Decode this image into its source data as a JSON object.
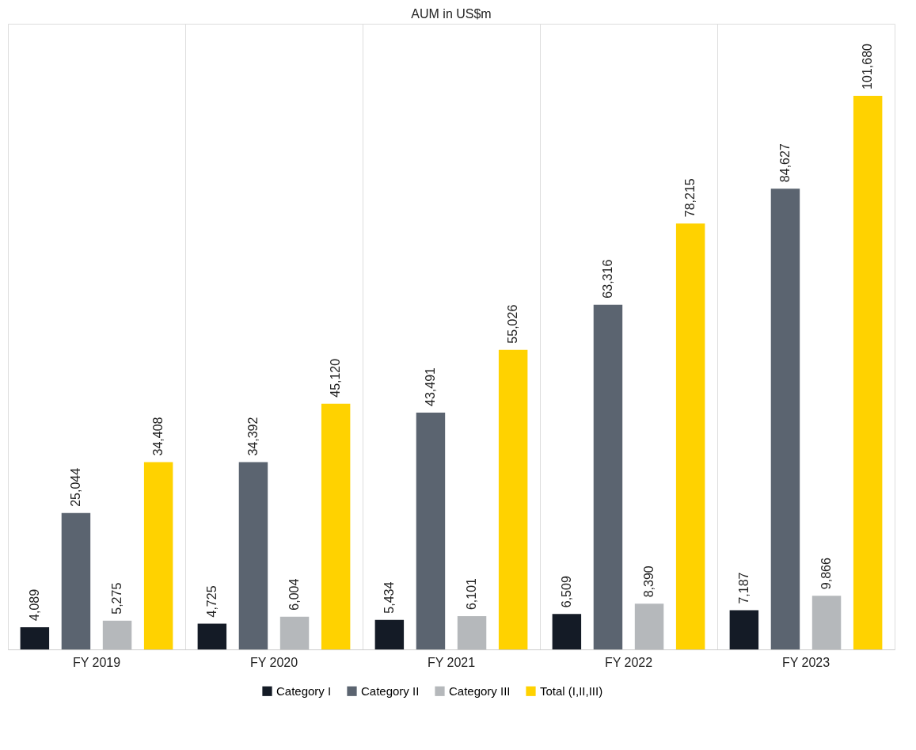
{
  "chart_data": {
    "type": "bar",
    "title": "AUM in US$m",
    "categories": [
      "FY 2019",
      "FY 2020",
      "FY 2021",
      "FY 2022",
      "FY 2023"
    ],
    "series": [
      {
        "name": "Category I",
        "color": "#141b26",
        "values": [
          4089,
          4725,
          5434,
          6509,
          7187
        ],
        "value_labels": [
          "4,089",
          "4,725",
          "5,434",
          "6,509",
          "7,187"
        ]
      },
      {
        "name": "Category II",
        "color": "#5b6470",
        "values": [
          25044,
          34392,
          43491,
          63316,
          84627
        ],
        "value_labels": [
          "25,044",
          "34,392",
          "43,491",
          "63,316",
          "84,627"
        ]
      },
      {
        "name": "Category III",
        "color": "#b5b8bb",
        "values": [
          5275,
          6004,
          6101,
          8390,
          9866
        ],
        "value_labels": [
          "5,275",
          "6,004",
          "6,101",
          "8,390",
          "9,866"
        ]
      },
      {
        "name": "Total (I,II,III)",
        "color": "#ffd200",
        "values": [
          34408,
          45120,
          55026,
          78215,
          101680
        ],
        "value_labels": [
          "34,408",
          "45,120",
          "55,026",
          "78,215",
          "101,680"
        ]
      }
    ],
    "grid": "x",
    "legend": "bottom"
  }
}
